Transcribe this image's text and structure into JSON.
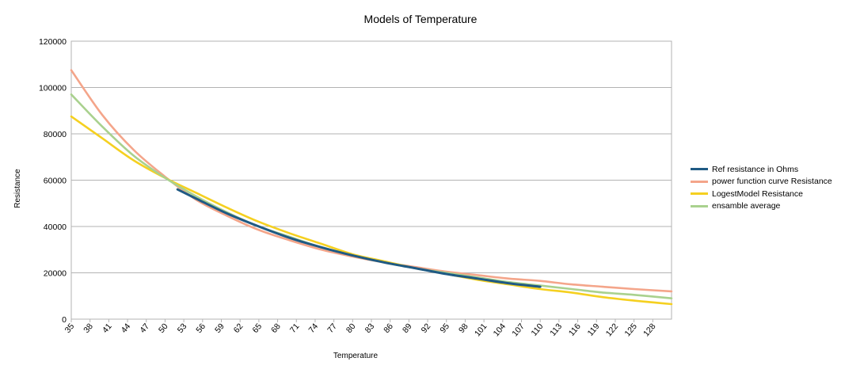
{
  "chart_data": {
    "type": "line",
    "title": "Models of Temperature",
    "xlabel": "Temperature",
    "ylabel": "Resistance",
    "x_start": 35,
    "x_end": 131,
    "x_ticks": [
      "35",
      "38",
      "41",
      "44",
      "47",
      "50",
      "53",
      "56",
      "59",
      "62",
      "65",
      "68",
      "71",
      "74",
      "77",
      "80",
      "83",
      "86",
      "89",
      "92",
      "95",
      "98",
      "101",
      "104",
      "107",
      "110",
      "113",
      "116",
      "119",
      "122",
      "125",
      "128"
    ],
    "y_ticks": [
      "0",
      "20000",
      "40000",
      "60000",
      "80000",
      "100000",
      "120000"
    ],
    "ylim": [
      0,
      120000
    ],
    "grid": "horizontal",
    "legend_position": "right",
    "series": [
      {
        "name": "Ref resistance in Ohms",
        "color": "#1f5a84",
        "x": [
          52,
          55,
          60,
          65,
          70,
          75,
          80,
          85,
          90,
          95,
          100,
          105,
          110
        ],
        "values": [
          56000,
          52000,
          45500,
          40000,
          35000,
          31000,
          27500,
          24500,
          22000,
          19500,
          17500,
          15500,
          14000
        ]
      },
      {
        "name": "power function curve Resistance",
        "color": "#f4a58a",
        "x": [
          35,
          40,
          45,
          50,
          55,
          60,
          65,
          70,
          75,
          80,
          85,
          90,
          95,
          100,
          105,
          110,
          115,
          120,
          125,
          131
        ],
        "values": [
          107500,
          88000,
          73000,
          61500,
          51500,
          44500,
          38500,
          34000,
          30000,
          27000,
          24500,
          22500,
          20500,
          19000,
          17500,
          16500,
          15000,
          14000,
          13000,
          12000
        ]
      },
      {
        "name": "LogestModel Resistance",
        "color": "#f5d020",
        "x": [
          35,
          40,
          45,
          50,
          55,
          60,
          65,
          70,
          75,
          80,
          85,
          90,
          95,
          100,
          105,
          110,
          115,
          120,
          125,
          131
        ],
        "values": [
          87500,
          78000,
          68500,
          61000,
          54500,
          48000,
          42000,
          37000,
          32500,
          28000,
          25000,
          22000,
          19500,
          17000,
          15000,
          13000,
          11500,
          9500,
          8000,
          6500
        ]
      },
      {
        "name": "ensamble average",
        "color": "#a9d18e",
        "x": [
          35,
          40,
          45,
          50,
          55,
          60,
          65,
          70,
          75,
          80,
          85,
          90,
          95,
          100,
          105,
          110,
          115,
          120,
          125,
          131
        ],
        "values": [
          97000,
          83000,
          70500,
          61000,
          53000,
          46000,
          40000,
          35500,
          31000,
          27500,
          24500,
          22000,
          20000,
          18000,
          16000,
          14500,
          13000,
          11500,
          10500,
          9000
        ]
      }
    ]
  }
}
